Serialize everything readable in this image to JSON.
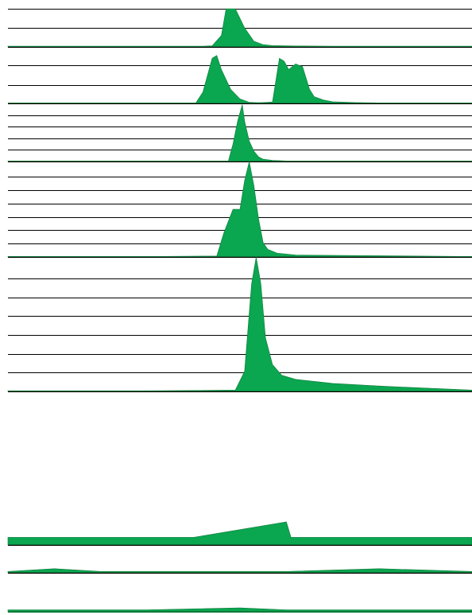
{
  "colors": {
    "fill": "#0aa650",
    "baseline": "#0f7a3a",
    "rule": "#000000",
    "background": "#ffffff"
  },
  "chart_data": {
    "type": "area",
    "title": "",
    "xlabel": "",
    "ylabel": "",
    "x_range": [
      0,
      100
    ],
    "grid": true,
    "legend": "none",
    "panels": [
      {
        "ylim": [
          0,
          100
        ],
        "grid_lines": [
          0,
          50,
          100
        ],
        "series": [
          {
            "points": [
              [
                0,
                2
              ],
              [
                42,
                2
              ],
              [
                44,
                3
              ],
              [
                46,
                30
              ],
              [
                47,
                100
              ],
              [
                49,
                100
              ],
              [
                51,
                50
              ],
              [
                53,
                15
              ],
              [
                55,
                6
              ],
              [
                57,
                3.5
              ],
              [
                62,
                2.5
              ],
              [
                70,
                2
              ],
              [
                100,
                2
              ]
            ]
          }
        ]
      },
      {
        "ylim": [
          0,
          100
        ],
        "grid_lines": [
          0,
          33,
          67,
          100
        ],
        "series": [
          {
            "points": [
              [
                40.5,
                1
              ],
              [
                42,
                20
              ],
              [
                44,
                80
              ],
              [
                45,
                85
              ],
              [
                46,
                60
              ],
              [
                48,
                25
              ],
              [
                50,
                8
              ],
              [
                52,
                2
              ],
              [
                55,
                1
              ],
              [
                61,
                1
              ],
              [
                87,
                1
              ]
            ]
          },
          {
            "points": [
              [
                53.5,
                1
              ],
              [
                56,
                2
              ],
              [
                57,
                2.5
              ],
              [
                58.5,
                80
              ],
              [
                59.5,
                75
              ],
              [
                60.5,
                60
              ],
              [
                62,
                70
              ],
              [
                63.5,
                65
              ],
              [
                65,
                25
              ],
              [
                66,
                12
              ],
              [
                68,
                6
              ],
              [
                70,
                3
              ],
              [
                75,
                1.5
              ],
              [
                80,
                1
              ],
              [
                100,
                1
              ]
            ]
          }
        ]
      },
      {
        "ylim": [
          0,
          100
        ],
        "grid_lines": [
          0,
          20,
          40,
          60,
          80,
          100
        ],
        "series": [
          {
            "points": [
              [
                0,
                0.5
              ],
              [
                30,
                0.5
              ],
              [
                47.5,
                1
              ],
              [
                48.5,
                30
              ],
              [
                49.5,
                70
              ],
              [
                50.5,
                98
              ],
              [
                51,
                70
              ],
              [
                52,
                35
              ],
              [
                53,
                18
              ],
              [
                54,
                8
              ],
              [
                55,
                4
              ],
              [
                57,
                2
              ],
              [
                60,
                1
              ],
              [
                100,
                0.5
              ]
            ]
          }
        ]
      },
      {
        "ylim": [
          0,
          100
        ],
        "grid_lines": [
          0,
          14,
          28,
          42,
          56,
          70,
          84,
          100
        ],
        "series": [
          {
            "points": [
              [
                0,
                0.5
              ],
              [
                30,
                0.5
              ],
              [
                45,
                1
              ],
              [
                46.5,
                25
              ],
              [
                48.5,
                50
              ],
              [
                50,
                50
              ],
              [
                51,
                80
              ],
              [
                52,
                100
              ],
              [
                53,
                75
              ],
              [
                54,
                40
              ],
              [
                55,
                15
              ],
              [
                56,
                8
              ],
              [
                58,
                4
              ],
              [
                62,
                2
              ],
              [
                100,
                0.5
              ]
            ]
          }
        ]
      },
      {
        "ylim": [
          0,
          100
        ],
        "grid_lines": [
          0,
          14,
          28,
          42,
          56,
          70,
          84,
          100
        ],
        "series": [
          {
            "points": [
              [
                0,
                0.5
              ],
              [
                30,
                0.5
              ],
              [
                49,
                1
              ],
              [
                51,
                15
              ],
              [
                52.5,
                80
              ],
              [
                53.5,
                100
              ],
              [
                54.5,
                80
              ],
              [
                55.5,
                40
              ],
              [
                57,
                20
              ],
              [
                59,
                12
              ],
              [
                62,
                9
              ],
              [
                70,
                6
              ],
              [
                80,
                4
              ],
              [
                90,
                2.5
              ],
              [
                100,
                1
              ]
            ]
          }
        ]
      },
      {
        "ylim": [
          0,
          100
        ],
        "grid_lines": [
          0,
          100
        ],
        "series": [
          {
            "points": [
              [
                0,
                5
              ],
              [
                20,
                5
              ],
              [
                40,
                5
              ],
              [
                60,
                15
              ],
              [
                61,
                5
              ],
              [
                80,
                5
              ],
              [
                100,
                5
              ]
            ]
          }
        ]
      },
      {
        "ylim": [
          0,
          100
        ],
        "grid_lines": [
          0,
          100
        ],
        "series": [
          {
            "points": [
              [
                0,
                5
              ],
              [
                10,
                15
              ],
              [
                20,
                5
              ],
              [
                40,
                5
              ],
              [
                60,
                5
              ],
              [
                80,
                15
              ],
              [
                100,
                5
              ]
            ]
          }
        ]
      },
      {
        "ylim": [
          0,
          100
        ],
        "grid_lines": [
          0,
          100
        ],
        "series": [
          {
            "points": [
              [
                0,
                5
              ],
              [
                30,
                5
              ],
              [
                50,
                10
              ],
              [
                60,
                5
              ],
              [
                100,
                5
              ]
            ]
          }
        ]
      }
    ]
  }
}
